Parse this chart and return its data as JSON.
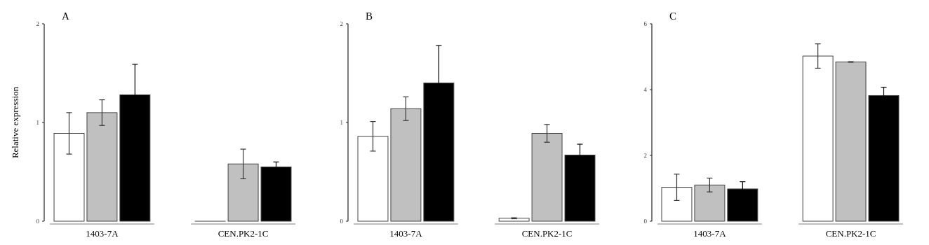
{
  "chart_data": [
    {
      "type": "bar",
      "title": "A",
      "ylabel": "Relative expression",
      "categories": [
        "1403-7A",
        "CEN.PK2-1C"
      ],
      "ylim": [
        0,
        2
      ],
      "yticks": [
        0,
        1,
        2
      ],
      "series": [
        {
          "color": "#ffffff",
          "values": [
            0.89,
            0
          ],
          "errors": [
            0.21,
            null
          ]
        },
        {
          "color": "#c0c0c0",
          "values": [
            1.1,
            0.58
          ],
          "errors": [
            0.13,
            0.15
          ]
        },
        {
          "color": "#000000",
          "values": [
            1.28,
            0.55
          ],
          "errors": [
            0.31,
            0.05
          ]
        }
      ]
    },
    {
      "type": "bar",
      "title": "B",
      "categories": [
        "1403-7A",
        "CEN.PK2-1C"
      ],
      "ylim": [
        0,
        2
      ],
      "yticks": [
        0,
        1,
        2
      ],
      "series": [
        {
          "color": "#ffffff",
          "values": [
            0.86,
            0.03
          ],
          "errors": [
            0.15,
            0.005
          ]
        },
        {
          "color": "#c0c0c0",
          "values": [
            1.14,
            0.89
          ],
          "errors": [
            0.12,
            0.09
          ]
        },
        {
          "color": "#000000",
          "values": [
            1.4,
            0.67
          ],
          "errors": [
            0.38,
            0.11
          ]
        }
      ]
    },
    {
      "type": "bar",
      "title": "C",
      "categories": [
        "1403-7A",
        "CEN.PK2-1C"
      ],
      "ylim": [
        0,
        6
      ],
      "yticks": [
        0,
        2,
        4,
        6
      ],
      "series": [
        {
          "color": "#ffffff",
          "values": [
            1.03,
            5.02
          ],
          "errors": [
            0.4,
            0.37
          ]
        },
        {
          "color": "#c0c0c0",
          "values": [
            1.1,
            4.84
          ],
          "errors": [
            0.21,
            0.01
          ]
        },
        {
          "color": "#000000",
          "values": [
            0.98,
            3.82
          ],
          "errors": [
            0.22,
            0.25
          ]
        }
      ]
    }
  ]
}
